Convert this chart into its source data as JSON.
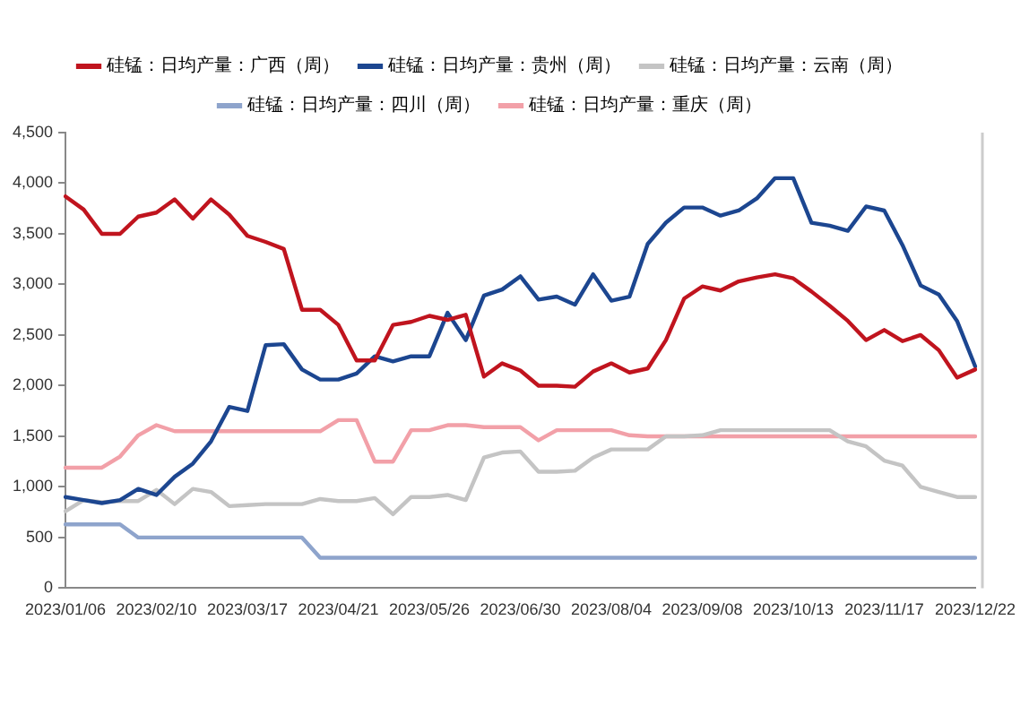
{
  "chart_data": {
    "type": "line",
    "legend": "top",
    "grid": false,
    "marker": "none",
    "line_style": "solid",
    "categories": [
      "2023/01/06",
      null,
      null,
      null,
      null,
      "2023/02/10",
      null,
      null,
      null,
      null,
      "2023/03/17",
      null,
      null,
      null,
      null,
      "2023/04/21",
      null,
      null,
      null,
      null,
      "2023/05/26",
      null,
      null,
      null,
      null,
      "2023/06/30",
      null,
      null,
      null,
      null,
      "2023/08/04",
      null,
      null,
      null,
      null,
      "2023/09/08",
      null,
      null,
      null,
      null,
      "2023/10/13",
      null,
      null,
      null,
      null,
      "2023/11/17",
      null,
      null,
      null,
      null,
      "2023/12/22"
    ],
    "ylim": [
      0,
      4500
    ],
    "yticks": [
      0,
      500,
      {
        "value": 1000,
        "label": "1,000"
      },
      {
        "value": 1500,
        "label": "1,500"
      },
      {
        "value": 2000,
        "label": "2,000"
      },
      {
        "value": 2500,
        "label": "2,500"
      },
      {
        "value": 3000,
        "label": "3,000"
      },
      {
        "value": 3500,
        "label": "3,500"
      },
      {
        "value": 4000,
        "label": "4,000"
      },
      {
        "value": 4500,
        "label": "4,500"
      }
    ],
    "series": [
      {
        "name": "硅锰：日均产量：广西（周）",
        "color": "#c0141e",
        "values": [
          3870,
          3740,
          3500,
          3500,
          3670,
          3710,
          3840,
          3650,
          3840,
          3690,
          3480,
          3420,
          3350,
          2750,
          2750,
          2600,
          2250,
          2250,
          2600,
          2630,
          2690,
          2650,
          2700,
          2090,
          2220,
          2150,
          2000,
          2000,
          1990,
          2140,
          2220,
          2130,
          2170,
          2450,
          2860,
          2980,
          2940,
          3030,
          3070,
          3100,
          3060,
          2930,
          2790,
          2640,
          2450,
          2550,
          2440,
          2500,
          2350,
          2080,
          2160
        ]
      },
      {
        "name": "硅锰：日均产量：贵州（周）",
        "color": "#1c4690",
        "values": [
          900,
          870,
          840,
          870,
          980,
          920,
          1100,
          1230,
          1450,
          1790,
          1750,
          2400,
          2410,
          2160,
          2060,
          2060,
          2120,
          2290,
          2240,
          2290,
          2290,
          2720,
          2450,
          2890,
          2950,
          3080,
          2850,
          2880,
          2800,
          3100,
          2840,
          2880,
          3400,
          3610,
          3760,
          3760,
          3680,
          3730,
          3850,
          4050,
          4050,
          3610,
          3580,
          3530,
          3770,
          3730,
          3390,
          2990,
          2900,
          2640,
          2190
        ]
      },
      {
        "name": "硅锰：日均产量：云南（周）",
        "color": "#c4c4c4",
        "values": [
          760,
          870,
          850,
          860,
          860,
          970,
          830,
          980,
          950,
          810,
          820,
          830,
          830,
          830,
          880,
          860,
          860,
          890,
          730,
          900,
          900,
          920,
          870,
          1290,
          1340,
          1350,
          1150,
          1150,
          1160,
          1290,
          1370,
          1370,
          1370,
          1500,
          1500,
          1510,
          1560,
          1560,
          1560,
          1560,
          1560,
          1560,
          1560,
          1450,
          1400,
          1260,
          1210,
          1000,
          950,
          900,
          900
        ]
      },
      {
        "name": "硅锰：日均产量：四川（周）",
        "color": "#8ea4cc",
        "values": [
          630,
          630,
          630,
          630,
          500,
          500,
          500,
          500,
          500,
          500,
          500,
          500,
          500,
          500,
          300,
          300,
          300,
          300,
          300,
          300,
          300,
          300,
          300,
          300,
          300,
          300,
          300,
          300,
          300,
          300,
          300,
          300,
          300,
          300,
          300,
          300,
          300,
          300,
          300,
          300,
          300,
          300,
          300,
          300,
          300,
          300,
          300,
          300,
          300,
          300,
          300
        ]
      },
      {
        "name": "硅锰：日均产量：重庆（周）",
        "color": "#f2a0a8",
        "values": [
          1190,
          1190,
          1190,
          1300,
          1510,
          1610,
          1550,
          1550,
          1550,
          1550,
          1550,
          1550,
          1550,
          1550,
          1550,
          1660,
          1660,
          1250,
          1250,
          1560,
          1560,
          1610,
          1610,
          1590,
          1590,
          1590,
          1460,
          1560,
          1560,
          1560,
          1560,
          1510,
          1500,
          1500,
          1500,
          1500,
          1500,
          1500,
          1500,
          1500,
          1500,
          1500,
          1500,
          1500,
          1500,
          1500,
          1500,
          1500,
          1500,
          1500,
          1500
        ]
      }
    ]
  }
}
